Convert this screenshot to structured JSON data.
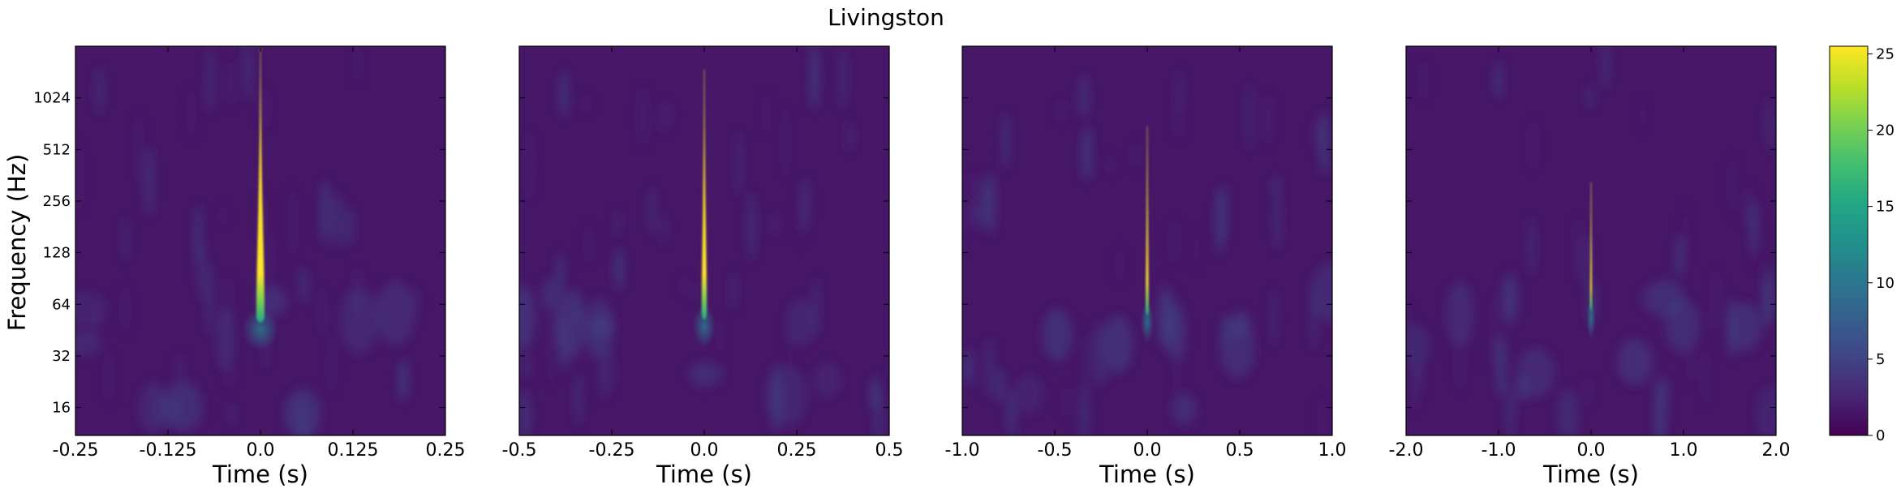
{
  "chart_data": {
    "type": "heatmap",
    "title": "Livingston",
    "colormap": "viridis",
    "colorbar": {
      "min": 0,
      "max": 25.5,
      "ticks": [
        0,
        5,
        10,
        15,
        20,
        25
      ],
      "tick_labels": [
        "0",
        "5",
        "10",
        "15",
        "20",
        "25"
      ]
    },
    "ylabel": "Frequency (Hz)",
    "yscale": "log2",
    "ylim": [
      11,
      2048
    ],
    "yticks": [
      16,
      32,
      64,
      128,
      256,
      512,
      1024
    ],
    "ytick_labels": [
      "16",
      "32",
      "64",
      "128",
      "256",
      "512",
      "1024"
    ],
    "background_energy": 1.5,
    "panels": [
      {
        "xlabel": "Time (s)",
        "xlim": [
          -0.25,
          0.25
        ],
        "xticks": [
          -0.25,
          -0.125,
          0.0,
          0.125,
          0.25
        ],
        "xtick_labels": [
          "-0.25",
          "-0.125",
          "0.0",
          "0.125",
          "0.25"
        ],
        "event": {
          "time": 0.0,
          "peak_energy": 25.5,
          "top_freq": 2048,
          "bottom_freq": 50,
          "width_at_peak": 0.011,
          "width_at_top": 0.0005
        }
      },
      {
        "xlabel": "Time (s)",
        "xlim": [
          -0.5,
          0.5
        ],
        "xticks": [
          -0.5,
          -0.25,
          0.0,
          0.25,
          0.5
        ],
        "xtick_labels": [
          "-0.5",
          "-0.25",
          "0.0",
          "0.25",
          "0.5"
        ],
        "event": {
          "time": 0.0,
          "peak_energy": 25,
          "top_freq": 1500,
          "bottom_freq": 52,
          "width_at_peak": 0.014,
          "width_at_top": 0.001
        }
      },
      {
        "xlabel": "Time (s)",
        "xlim": [
          -1.0,
          1.0
        ],
        "xticks": [
          -1.0,
          -0.5,
          0.0,
          0.5,
          1.0
        ],
        "xtick_labels": [
          "-1.0",
          "-0.5",
          "0.0",
          "0.5",
          "1.0"
        ],
        "event": {
          "time": 0.0,
          "peak_energy": 24,
          "top_freq": 700,
          "bottom_freq": 55,
          "width_at_peak": 0.016,
          "width_at_top": 0.002
        }
      },
      {
        "xlabel": "Time (s)",
        "xlim": [
          -2.0,
          2.0
        ],
        "xticks": [
          -2.0,
          -1.0,
          0.0,
          1.0,
          2.0
        ],
        "xtick_labels": [
          "-2.0",
          "-1.0",
          "0.0",
          "1.0",
          "2.0"
        ],
        "event": {
          "time": 0.0,
          "peak_energy": 22,
          "top_freq": 330,
          "bottom_freq": 58,
          "width_at_peak": 0.02,
          "width_at_top": 0.004
        }
      }
    ]
  }
}
